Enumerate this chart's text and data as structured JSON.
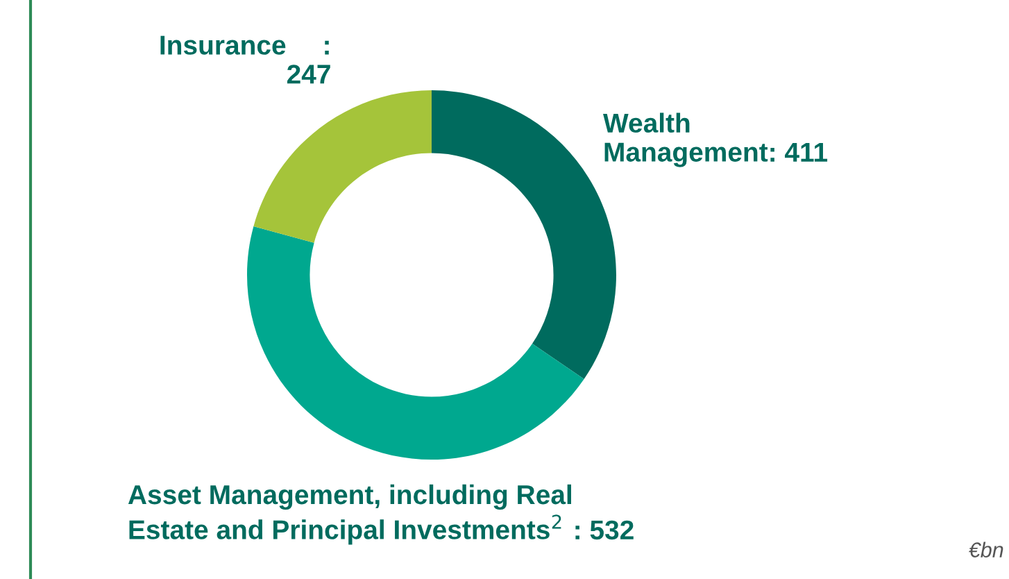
{
  "chart_data": {
    "type": "donut",
    "categories": [
      "Wealth\nManagement",
      "Asset Management, including Real\nEstate and Principal Investments$^{2}$",
      "Insurance"
    ],
    "values": [
      411,
      532,
      247
    ],
    "colors": [
      "#006b5e",
      "#00a88f",
      "#a5c43a"
    ],
    "value_labels": [
      ": 411",
      ": 532",
      ":\n247"
    ],
    "annotations": [
      "€bn"
    ],
    "legend": false
  }
}
